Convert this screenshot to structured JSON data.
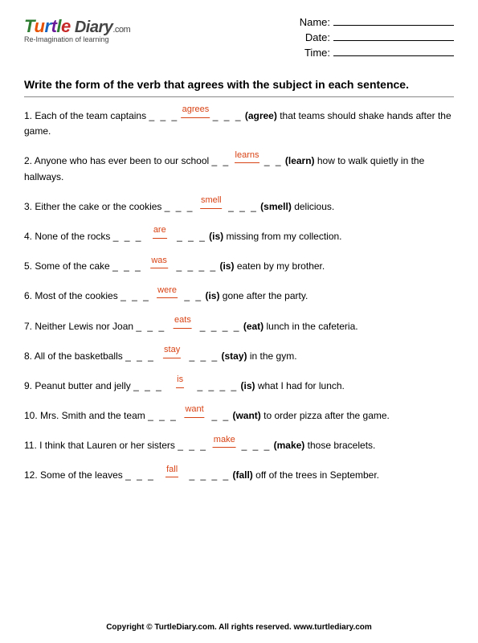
{
  "logo": {
    "word": "TurtleDiary",
    "suffix": ".com",
    "tagline": "Re-Imagination of learning"
  },
  "info": {
    "name_label": "Name:",
    "date_label": "Date:",
    "time_label": "Time:"
  },
  "instruction": "Write the form of the verb that agrees with the subject in each sentence.",
  "colors": {
    "answer": "#d84315",
    "text": "#000000",
    "bg": "#ffffff"
  },
  "questions": [
    {
      "n": "1.",
      "pre": "Each of the team captains",
      "answer": "agrees",
      "hint": "(agree)",
      "post": "that teams should shake hands after the game.",
      "dashes_l": 3,
      "dashes_r": 3
    },
    {
      "n": "2.",
      "pre": "Anyone who has ever been to our school",
      "answer": "learns",
      "hint": "(learn)",
      "post": "how to walk quietly in the hallways.",
      "dashes_l": 2,
      "dashes_r": 2
    },
    {
      "n": "3.",
      "pre": "Either the cake or the cookies",
      "answer": "smell",
      "hint": "(smell)",
      "post": "delicious.",
      "dashes_l": 3,
      "dashes_r": 3
    },
    {
      "n": "4.",
      "pre": "None of the rocks",
      "answer": "are",
      "hint": "(is)",
      "post": "missing from my collection.",
      "dashes_l": 3,
      "dashes_r": 3
    },
    {
      "n": "5.",
      "pre": "Some of the cake",
      "answer": "was",
      "hint": "(is)",
      "post": "eaten by my brother.",
      "dashes_l": 3,
      "dashes_r": 4
    },
    {
      "n": "6.",
      "pre": "Most of the cookies",
      "answer": "were",
      "hint": "(is)",
      "post": "gone after the party.",
      "dashes_l": 3,
      "dashes_r": 2
    },
    {
      "n": "7.",
      "pre": "Neither Lewis nor Joan",
      "answer": "eats",
      "hint": "(eat)",
      "post": "lunch in the cafeteria.",
      "dashes_l": 3,
      "dashes_r": 4
    },
    {
      "n": "8.",
      "pre": "All of the basketballs",
      "answer": "stay",
      "hint": "(stay)",
      "post": "in the gym.",
      "dashes_l": 3,
      "dashes_r": 3
    },
    {
      "n": "9.",
      "pre": "Peanut butter and jelly",
      "answer": "is",
      "hint": "(is)",
      "post": "what I had for lunch.",
      "dashes_l": 3,
      "dashes_r": 4
    },
    {
      "n": "10.",
      "pre": "Mrs. Smith and the team",
      "answer": "want",
      "hint": "(want)",
      "post": "to order pizza after the game.",
      "dashes_l": 3,
      "dashes_r": 2
    },
    {
      "n": "11.",
      "pre": "I think that Lauren or her sisters",
      "answer": "make",
      "hint": "(make)",
      "post": "those bracelets.",
      "dashes_l": 3,
      "dashes_r": 3
    },
    {
      "n": "12.",
      "pre": "Some of the leaves",
      "answer": "fall",
      "hint": "(fall)",
      "post": "off of the trees in September.",
      "dashes_l": 3,
      "dashes_r": 4
    }
  ],
  "footer": "Copyright © TurtleDiary.com. All rights reserved. www.turtlediary.com"
}
